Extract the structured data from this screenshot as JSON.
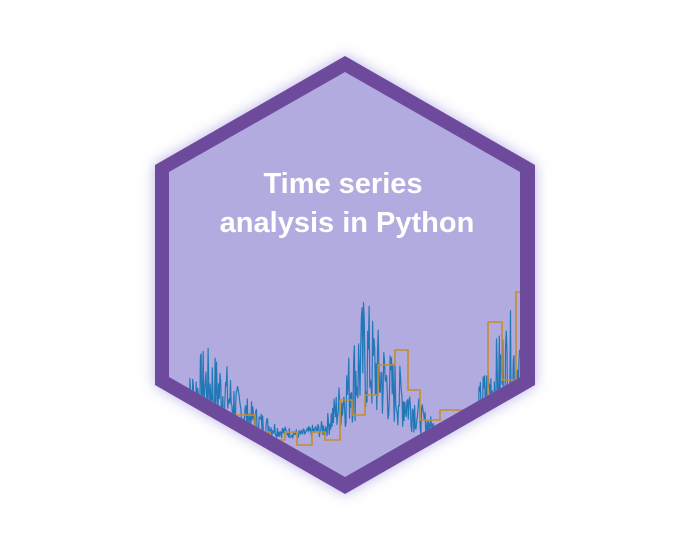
{
  "logo": {
    "title_line1": "Time series",
    "title_line2": "analysis in Python",
    "colors": {
      "background": "#ffffff",
      "glow": "#b9b3e6",
      "border": "#6e4a9c",
      "fill": "#b1abdf",
      "signal": "#2277b6",
      "step": "#c78d2b",
      "text": "#ffffff"
    },
    "icons": [
      "hexagon-badge",
      "time-series-signal",
      "step-line"
    ]
  }
}
